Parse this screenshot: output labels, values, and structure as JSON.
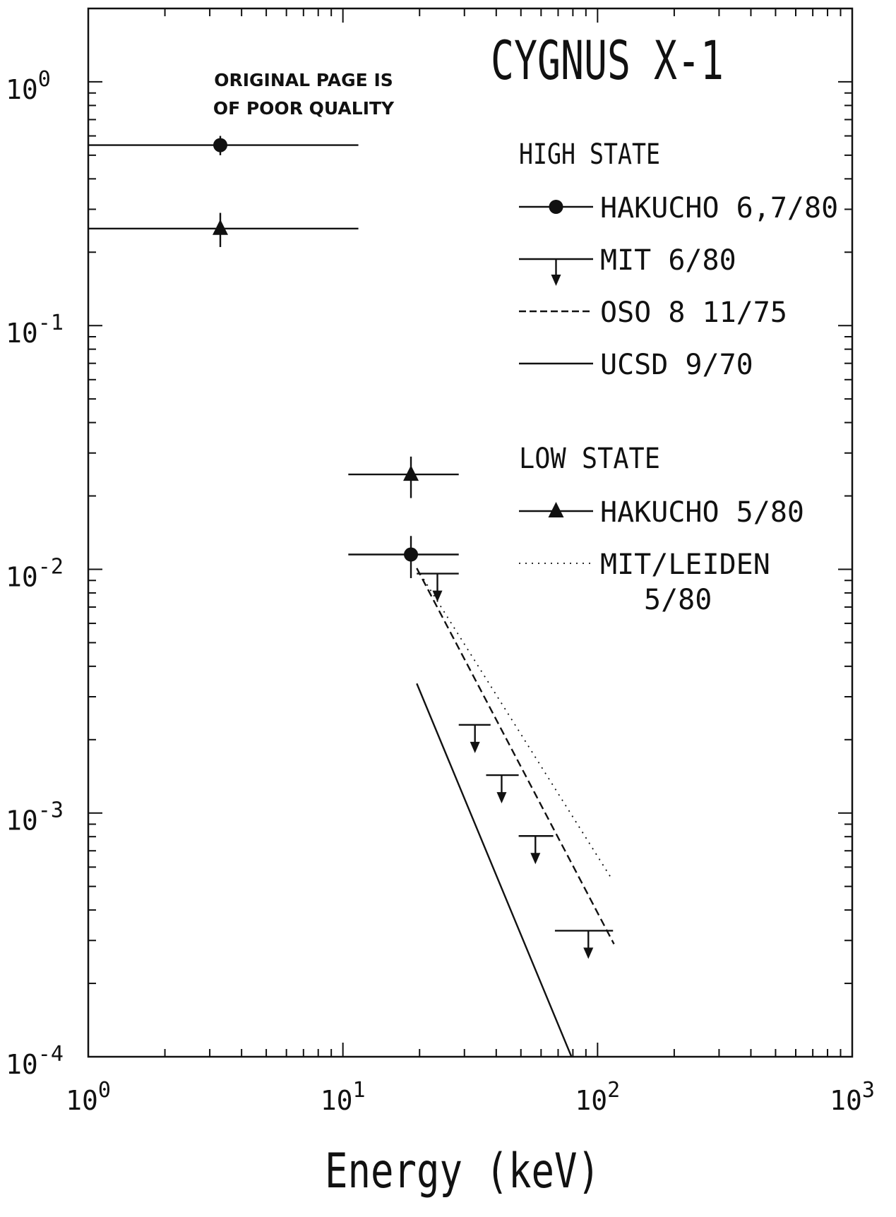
{
  "chart_data": {
    "type": "scatter",
    "title": "CYGNUS X-1",
    "xlabel": "Energy (keV)",
    "ylabel": "",
    "x_scale": "log",
    "y_scale": "log",
    "xlim": [
      1,
      1000
    ],
    "ylim": [
      0.0001,
      2.0
    ],
    "x_ticks": [
      {
        "base": "10",
        "exp": "0",
        "value": 1
      },
      {
        "base": "10",
        "exp": "1",
        "value": 10
      },
      {
        "base": "10",
        "exp": "2",
        "value": 100
      },
      {
        "base": "10",
        "exp": "3",
        "value": 1000
      }
    ],
    "y_ticks": [
      {
        "base": "10",
        "exp": "0",
        "value": 1
      },
      {
        "base": "10",
        "exp": "-1",
        "value": 0.1
      },
      {
        "base": "10",
        "exp": "-2",
        "value": 0.01
      },
      {
        "base": "10",
        "exp": "-3",
        "value": 0.001
      },
      {
        "base": "10",
        "exp": "-4",
        "value": 0.0001
      }
    ],
    "grid": false,
    "legend_position": "right",
    "legend_groups": [
      {
        "heading": "HIGH STATE",
        "entries": [
          {
            "key": "hakucho_high",
            "label": "HAKUCHO 6,7/80",
            "marker": "circle",
            "line": "solid"
          },
          {
            "key": "mit_upper",
            "label": "MIT 6/80",
            "marker": "upper-limit",
            "line": "solid"
          },
          {
            "key": "oso8",
            "label": "OSO 8 11/75",
            "marker": "none",
            "line": "dashed"
          },
          {
            "key": "ucsd",
            "label": "UCSD 9/70",
            "marker": "none",
            "line": "solid"
          }
        ]
      },
      {
        "heading": "LOW STATE",
        "entries": [
          {
            "key": "hakucho_low",
            "label": "HAKUCHO 5/80",
            "marker": "triangle",
            "line": "solid"
          },
          {
            "key": "mit_leiden",
            "label": "MIT/LEIDEN\n5/80",
            "marker": "none",
            "line": "dotted"
          }
        ]
      }
    ],
    "series": [
      {
        "key": "hakucho_high",
        "name": "HAKUCHO 6,7/80",
        "marker": "circle",
        "points": [
          {
            "x": 3.3,
            "y": 0.55,
            "xlo": 1.0,
            "xhi": 11.5,
            "ylo": 0.5,
            "yhi": 0.6
          },
          {
            "x": 18.5,
            "y": 0.0115,
            "xlo": 10.5,
            "xhi": 28.5,
            "ylo": 0.0092,
            "yhi": 0.0137
          }
        ]
      },
      {
        "key": "hakucho_low",
        "name": "HAKUCHO 5/80",
        "marker": "triangle",
        "points": [
          {
            "x": 3.3,
            "y": 0.25,
            "xlo": 1.0,
            "xhi": 11.5,
            "ylo": 0.21,
            "yhi": 0.29
          },
          {
            "x": 18.5,
            "y": 0.0245,
            "xlo": 10.5,
            "xhi": 28.5,
            "ylo": 0.0196,
            "yhi": 0.029
          }
        ]
      },
      {
        "key": "mit_upper",
        "name": "MIT 6/80",
        "marker": "upper-limit",
        "points": [
          {
            "x": 23.5,
            "y": 0.0096,
            "xlo": 19.5,
            "xhi": 28.5
          },
          {
            "x": 33,
            "y": 0.0023,
            "xlo": 28.5,
            "xhi": 38
          },
          {
            "x": 42,
            "y": 0.00143,
            "xlo": 36.5,
            "xhi": 49
          },
          {
            "x": 57,
            "y": 0.000805,
            "xlo": 49,
            "xhi": 67
          },
          {
            "x": 92,
            "y": 0.000329,
            "xlo": 68,
            "xhi": 115
          }
        ]
      },
      {
        "key": "oso8",
        "name": "OSO 8 11/75",
        "style": "dashed",
        "points": [
          {
            "x": 19.5,
            "y": 0.0101
          },
          {
            "x": 116,
            "y": 0.00029
          }
        ]
      },
      {
        "key": "ucsd",
        "name": "UCSD 9/70",
        "style": "solid",
        "points": [
          {
            "x": 19.5,
            "y": 0.0034
          },
          {
            "x": 79,
            "y": 0.0001
          }
        ]
      },
      {
        "key": "mit_leiden",
        "name": "MIT/LEIDEN 5/80",
        "style": "dotted",
        "points": [
          {
            "x": 19.5,
            "y": 0.0101
          },
          {
            "x": 112,
            "y": 0.00055
          }
        ]
      }
    ],
    "annotation": "ORIGINAL PAGE IS\nOF POOR QUALITY"
  }
}
